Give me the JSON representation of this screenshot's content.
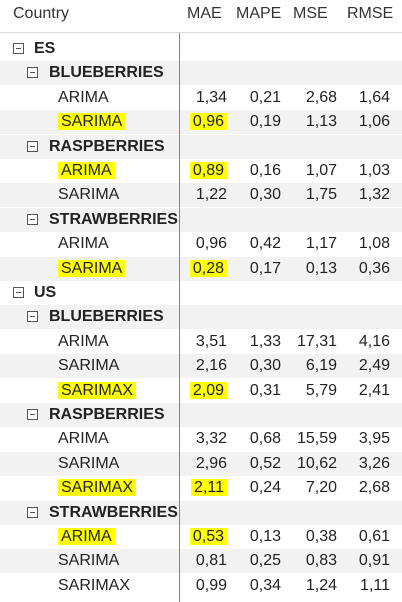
{
  "header": {
    "country": "Country",
    "metrics": [
      "MAE",
      "MAPE",
      "MSE",
      "RMSE"
    ]
  },
  "rows": [
    {
      "level": 0,
      "label": "ES"
    },
    {
      "level": 1,
      "label": "BLUEBERRIES"
    },
    {
      "level": 2,
      "label": "ARIMA",
      "values": [
        "1,34",
        "0,21",
        "2,68",
        "1,64"
      ],
      "highlight": false
    },
    {
      "level": 2,
      "label": "SARIMA",
      "values": [
        "0,96",
        "0,19",
        "1,13",
        "1,06"
      ],
      "highlight": true
    },
    {
      "level": 1,
      "label": "RASPBERRIES"
    },
    {
      "level": 2,
      "label": "ARIMA",
      "values": [
        "0,89",
        "0,16",
        "1,07",
        "1,03"
      ],
      "highlight": true
    },
    {
      "level": 2,
      "label": "SARIMA",
      "values": [
        "1,22",
        "0,30",
        "1,75",
        "1,32"
      ],
      "highlight": false
    },
    {
      "level": 1,
      "label": "STRAWBERRIES"
    },
    {
      "level": 2,
      "label": "ARIMA",
      "values": [
        "0,96",
        "0,42",
        "1,17",
        "1,08"
      ],
      "highlight": false
    },
    {
      "level": 2,
      "label": "SARIMA",
      "values": [
        "0,28",
        "0,17",
        "0,13",
        "0,36"
      ],
      "highlight": true
    },
    {
      "level": 0,
      "label": "US"
    },
    {
      "level": 1,
      "label": "BLUEBERRIES"
    },
    {
      "level": 2,
      "label": "ARIMA",
      "values": [
        "3,51",
        "1,33",
        "17,31",
        "4,16"
      ],
      "highlight": false
    },
    {
      "level": 2,
      "label": "SARIMA",
      "values": [
        "2,16",
        "0,30",
        "6,19",
        "2,49"
      ],
      "highlight": false
    },
    {
      "level": 2,
      "label": "SARIMAX",
      "values": [
        "2,09",
        "0,31",
        "5,79",
        "2,41"
      ],
      "highlight": true
    },
    {
      "level": 1,
      "label": "RASPBERRIES"
    },
    {
      "level": 2,
      "label": "ARIMA",
      "values": [
        "3,32",
        "0,68",
        "15,59",
        "3,95"
      ],
      "highlight": false
    },
    {
      "level": 2,
      "label": "SARIMA",
      "values": [
        "2,96",
        "0,52",
        "10,62",
        "3,26"
      ],
      "highlight": false
    },
    {
      "level": 2,
      "label": "SARIMAX",
      "values": [
        "2,11",
        "0,24",
        "7,20",
        "2,68"
      ],
      "highlight": true
    },
    {
      "level": 1,
      "label": "STRAWBERRIES"
    },
    {
      "level": 2,
      "label": "ARIMA",
      "values": [
        "0,53",
        "0,13",
        "0,38",
        "0,61"
      ],
      "highlight": true
    },
    {
      "level": 2,
      "label": "SARIMA",
      "values": [
        "0,81",
        "0,25",
        "0,83",
        "0,91"
      ],
      "highlight": false
    },
    {
      "level": 2,
      "label": "SARIMAX",
      "values": [
        "0,99",
        "0,34",
        "1,24",
        "1,11"
      ],
      "highlight": false
    }
  ],
  "colors": {
    "highlight": "#ffff00",
    "shaded_row": "#f2f2f2",
    "column_divider": "#4a90d9"
  }
}
